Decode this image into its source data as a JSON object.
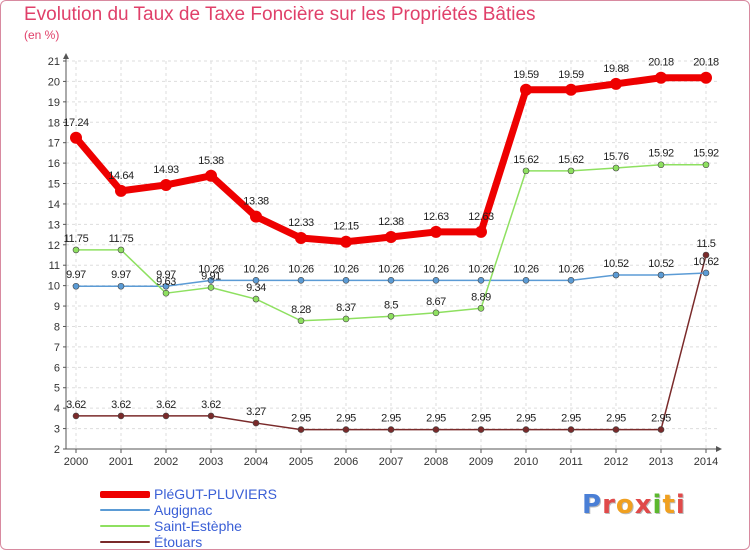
{
  "title": "Evolution du Taux de Taxe Foncière sur les Propriétés Bâties",
  "subtitle": "(en %)",
  "logo": {
    "letters": [
      "P",
      "r",
      "o",
      "x",
      "i",
      "t",
      "i"
    ],
    "colors": [
      "#4a7fd6",
      "#e04a4a",
      "#f0a020",
      "#e04a4a",
      "#5cb82e",
      "#f0a020",
      "#e04a4a"
    ]
  },
  "chart_data": {
    "type": "line",
    "title": "Evolution du Taux de Taxe Foncière sur les Propriétés Bâties",
    "ylabel": "(en %)",
    "x": [
      "2000",
      "2001",
      "2002",
      "2003",
      "2004",
      "2005",
      "2006",
      "2007",
      "2008",
      "2009",
      "2010",
      "2011",
      "2012",
      "2013",
      "2014"
    ],
    "ylim": [
      2,
      21
    ],
    "yticks": [
      "2",
      "3",
      "4",
      "5",
      "6",
      "7",
      "8",
      "9",
      "10",
      "11",
      "12",
      "13",
      "14",
      "15",
      "16",
      "17",
      "18",
      "19",
      "20",
      "21"
    ],
    "grid": true,
    "series": [
      {
        "name": "PléGUT-PLUVIERS",
        "color": "#ee0000",
        "values": [
          17.24,
          14.64,
          14.93,
          15.38,
          13.38,
          12.33,
          12.15,
          12.38,
          12.63,
          12.63,
          19.59,
          19.59,
          19.88,
          20.18,
          20.18
        ],
        "labels": [
          "17.24",
          "14.64",
          "14.93",
          "15.38",
          "13.38",
          "12.33",
          "12.15",
          "12.38",
          "12.63",
          "12.63",
          "19.59",
          "19.59",
          "19.88",
          "20.18",
          "20.18"
        ]
      },
      {
        "name": "Augignac",
        "color": "#5b9bd5",
        "values": [
          9.97,
          9.97,
          9.97,
          10.26,
          10.26,
          10.26,
          10.26,
          10.26,
          10.26,
          10.26,
          10.26,
          10.26,
          10.52,
          10.52,
          10.62
        ],
        "labels": [
          "9.97",
          "9.97",
          "9.97",
          "10.26",
          "10.26",
          "10.26",
          "10.26",
          "10.26",
          "10.26",
          "10.26",
          "10.26",
          "10.26",
          "10.52",
          "10.52",
          "10.62"
        ]
      },
      {
        "name": "Saint-Estèphe",
        "color": "#8ee060",
        "values": [
          11.75,
          11.75,
          9.63,
          9.91,
          9.34,
          8.28,
          8.37,
          8.5,
          8.67,
          8.89,
          15.62,
          15.62,
          15.76,
          15.92,
          15.92
        ],
        "labels": [
          "11.75",
          "11.75",
          "9.63",
          "9.91",
          "9.34",
          "8.28",
          "8.37",
          "8.5",
          "8.67",
          "8.89",
          "15.62",
          "15.62",
          "15.76",
          "15.92",
          "15.92"
        ]
      },
      {
        "name": "Étouars",
        "color": "#7a2a2a",
        "values": [
          3.62,
          3.62,
          3.62,
          3.62,
          3.27,
          2.95,
          2.95,
          2.95,
          2.95,
          2.95,
          2.95,
          2.95,
          2.95,
          2.95,
          11.5
        ],
        "labels": [
          "3.62",
          "3.62",
          "3.62",
          "3.62",
          "3.27",
          "2.95",
          "2.95",
          "2.95",
          "2.95",
          "2.95",
          "2.95",
          "2.95",
          "2.95",
          "2.95",
          "11.5"
        ]
      }
    ],
    "legend_position": "bottom-left"
  }
}
